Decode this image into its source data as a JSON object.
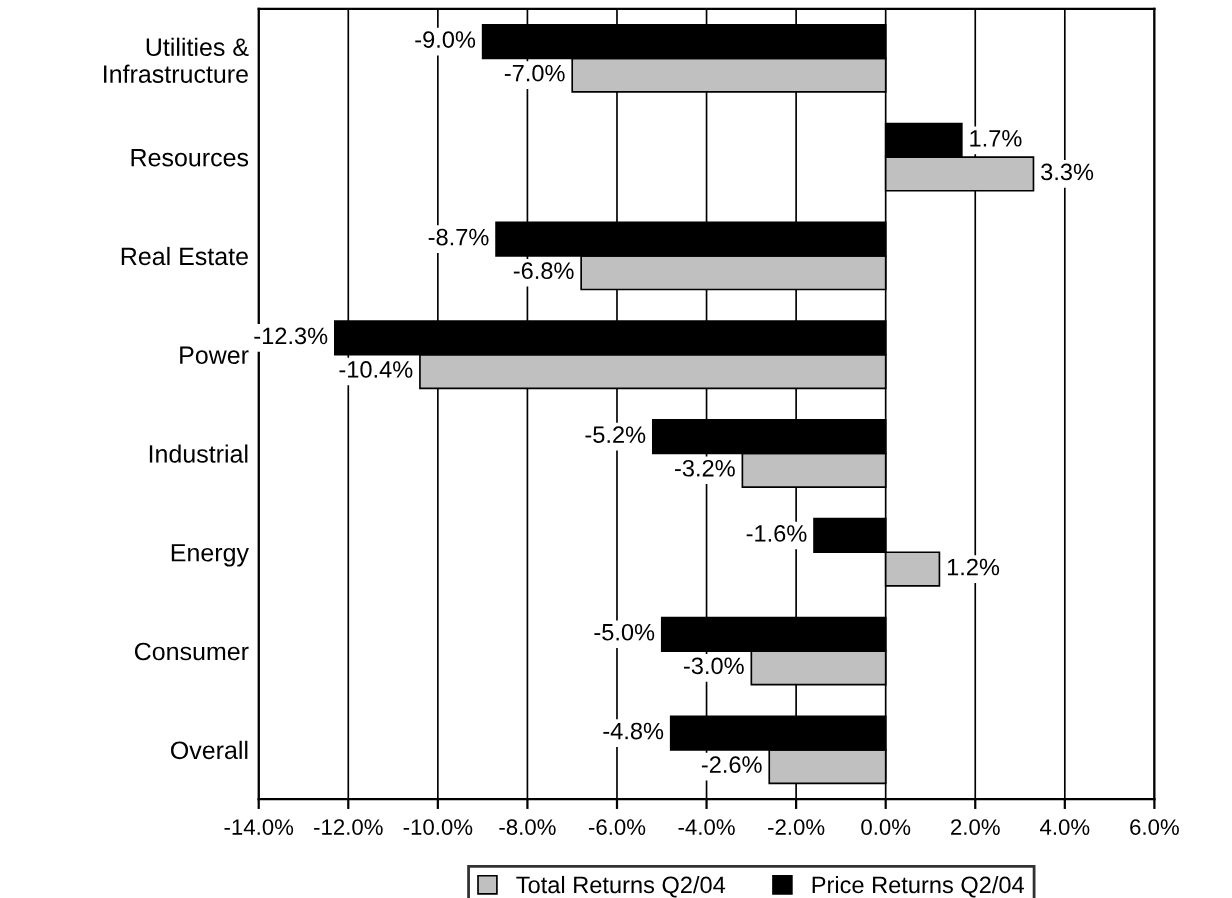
{
  "chart_data": {
    "type": "bar",
    "orientation": "horizontal",
    "categories": [
      "Utilities &\nInfrastructure",
      "Resources",
      "Real Estate",
      "Power",
      "Industrial",
      "Energy",
      "Consumer",
      "Overall"
    ],
    "series": [
      {
        "name": "Total Returns Q2/04",
        "color": "#c0c0c0",
        "values": [
          -7.0,
          3.3,
          -6.8,
          -10.4,
          -3.2,
          1.2,
          -3.0,
          -2.6
        ],
        "value_labels": [
          "-7.0%",
          "3.3%",
          "-6.8%",
          "-10.4%",
          "-3.2%",
          "1.2%",
          "-3.0%",
          "-2.6%"
        ]
      },
      {
        "name": "Price Returns Q2/04",
        "color": "#000000",
        "values": [
          -9.0,
          1.7,
          -8.7,
          -12.3,
          -5.2,
          -1.6,
          -5.0,
          -4.8
        ],
        "value_labels": [
          "-9.0%",
          "1.7%",
          "-8.7%",
          "-12.3%",
          "-5.2%",
          "-1.6%",
          "-5.0%",
          "-4.8%"
        ]
      }
    ],
    "xlim": [
      -14,
      6
    ],
    "xticks": [
      {
        "value": -14,
        "label": "-14.0%"
      },
      {
        "value": -12,
        "label": "-12.0%"
      },
      {
        "value": -10,
        "label": "-10.0%"
      },
      {
        "value": -8,
        "label": "-8.0%"
      },
      {
        "value": -6,
        "label": "-6.0%"
      },
      {
        "value": -4,
        "label": "-4.0%"
      },
      {
        "value": -2,
        "label": "-2.0%"
      },
      {
        "value": 0,
        "label": "0.0%"
      },
      {
        "value": 2,
        "label": "2.0%"
      },
      {
        "value": 4,
        "label": "4.0%"
      },
      {
        "value": 6,
        "label": "6.0%"
      }
    ],
    "grid": "x",
    "legend": "bottom"
  }
}
